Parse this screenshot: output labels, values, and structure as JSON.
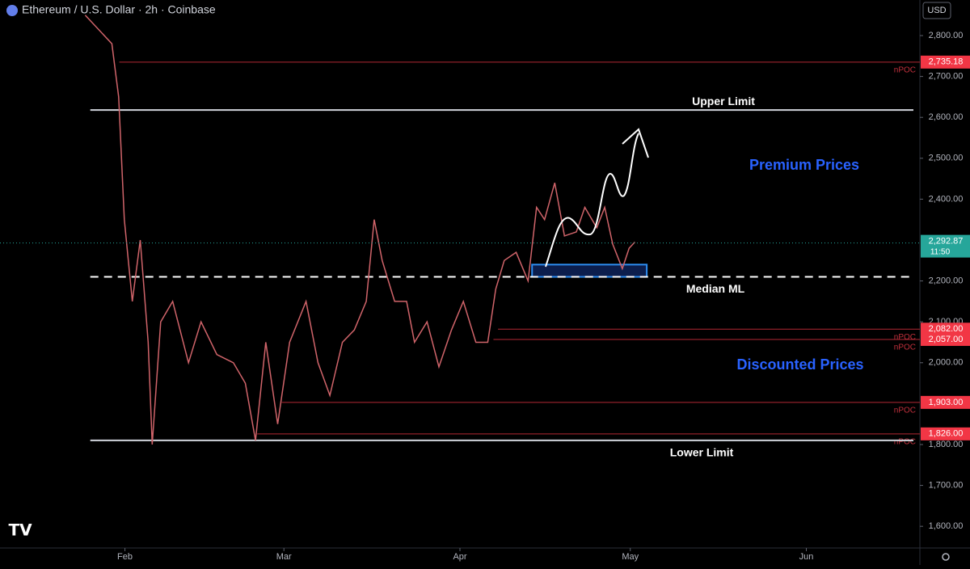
{
  "chart_data": {
    "type": "line",
    "title": "Ethereum / U.S. Dollar · 2h · Coinbase",
    "currency": "USD",
    "color": "#d0646a",
    "x": [
      25,
      29.7,
      30.9,
      31.9,
      33.3,
      34.7,
      36.1,
      36.8,
      38.3,
      40.4,
      43.2,
      45.4,
      48.2,
      51.1,
      53.2,
      55,
      56.8,
      58.9,
      61,
      63.9,
      66,
      68.1,
      70.3,
      72.4,
      74.5,
      75.9,
      77.3,
      79.5,
      81.6,
      83,
      85.2,
      87.3,
      89.5,
      91.6,
      93.8,
      95.9,
      97.3,
      98.8,
      100.9,
      103,
      104.5,
      105.9,
      107.7,
      109.4,
      111.5,
      113,
      115.1,
      116.5,
      117.9,
      119.6,
      120.8,
      121.8
    ],
    "values": [
      2850,
      2780,
      2650,
      2350,
      2150,
      2300,
      2050,
      1800,
      2100,
      2150,
      2000,
      2100,
      2020,
      2000,
      1950,
      1810,
      2050,
      1850,
      2050,
      2150,
      2000,
      1920,
      2050,
      2080,
      2150,
      2350,
      2250,
      2150,
      2150,
      2050,
      2100,
      1990,
      2080,
      2150,
      2050,
      2050,
      2180,
      2250,
      2270,
      2200,
      2380,
      2350,
      2440,
      2310,
      2320,
      2380,
      2330,
      2380,
      2290,
      2230,
      2280,
      2295
    ],
    "xlim": [
      10,
      172
    ],
    "ylim": [
      1547,
      2887
    ],
    "xticks": [
      {
        "value": 32,
        "label": "Feb"
      },
      {
        "value": 60,
        "label": "Mar"
      },
      {
        "value": 91,
        "label": "Apr"
      },
      {
        "value": 121,
        "label": "May"
      },
      {
        "value": 152,
        "label": "Jun"
      }
    ],
    "yticks": [
      {
        "value": 2800,
        "label": "2,800.00"
      },
      {
        "value": 2700,
        "label": "2,700.00"
      },
      {
        "value": 2600,
        "label": "2,600.00"
      },
      {
        "value": 2500,
        "label": "2,500.00"
      },
      {
        "value": 2400,
        "label": "2,400.00"
      },
      {
        "value": 2200,
        "label": "2,200.00"
      },
      {
        "value": 2100,
        "label": "2,100.00"
      },
      {
        "value": 2000,
        "label": "2,000.00"
      },
      {
        "value": 1800,
        "label": "1,800.00"
      },
      {
        "value": 1700,
        "label": "1,700.00"
      },
      {
        "value": 1600,
        "label": "1,600.00"
      }
    ],
    "current_price": {
      "value": 2292.87,
      "label": "2,292.87",
      "countdown": "11:50"
    },
    "levels": [
      {
        "value": 2735.18,
        "label": "2,735.18",
        "note": "nPOC",
        "start": 31
      },
      {
        "value": 2082,
        "label": "2,082.00",
        "note": "nPOC",
        "start": 97.7
      },
      {
        "value": 2057,
        "label": "2,057.00",
        "note": "nPOC",
        "start": 96.9
      },
      {
        "value": 1903,
        "label": "1,903.00",
        "note": "nPOC",
        "start": 59.6
      },
      {
        "value": 1826,
        "label": "1,826.00",
        "note": "nPOC",
        "start": 55.3
      }
    ],
    "limits": [
      {
        "name": "Upper Limit",
        "value": 2618,
        "start": 25.9,
        "style": "solid"
      },
      {
        "name": "Median ML",
        "value": 2210,
        "start": 25.9,
        "style": "dashed"
      },
      {
        "name": "Lower Limit",
        "value": 1810,
        "start": 25.9,
        "style": "solid"
      }
    ],
    "zone": {
      "top": 2240,
      "bottom": 2210,
      "start": 103.7,
      "end": 123.9
    },
    "annotations": [
      "Premium Prices",
      "Discounted Prices"
    ]
  }
}
